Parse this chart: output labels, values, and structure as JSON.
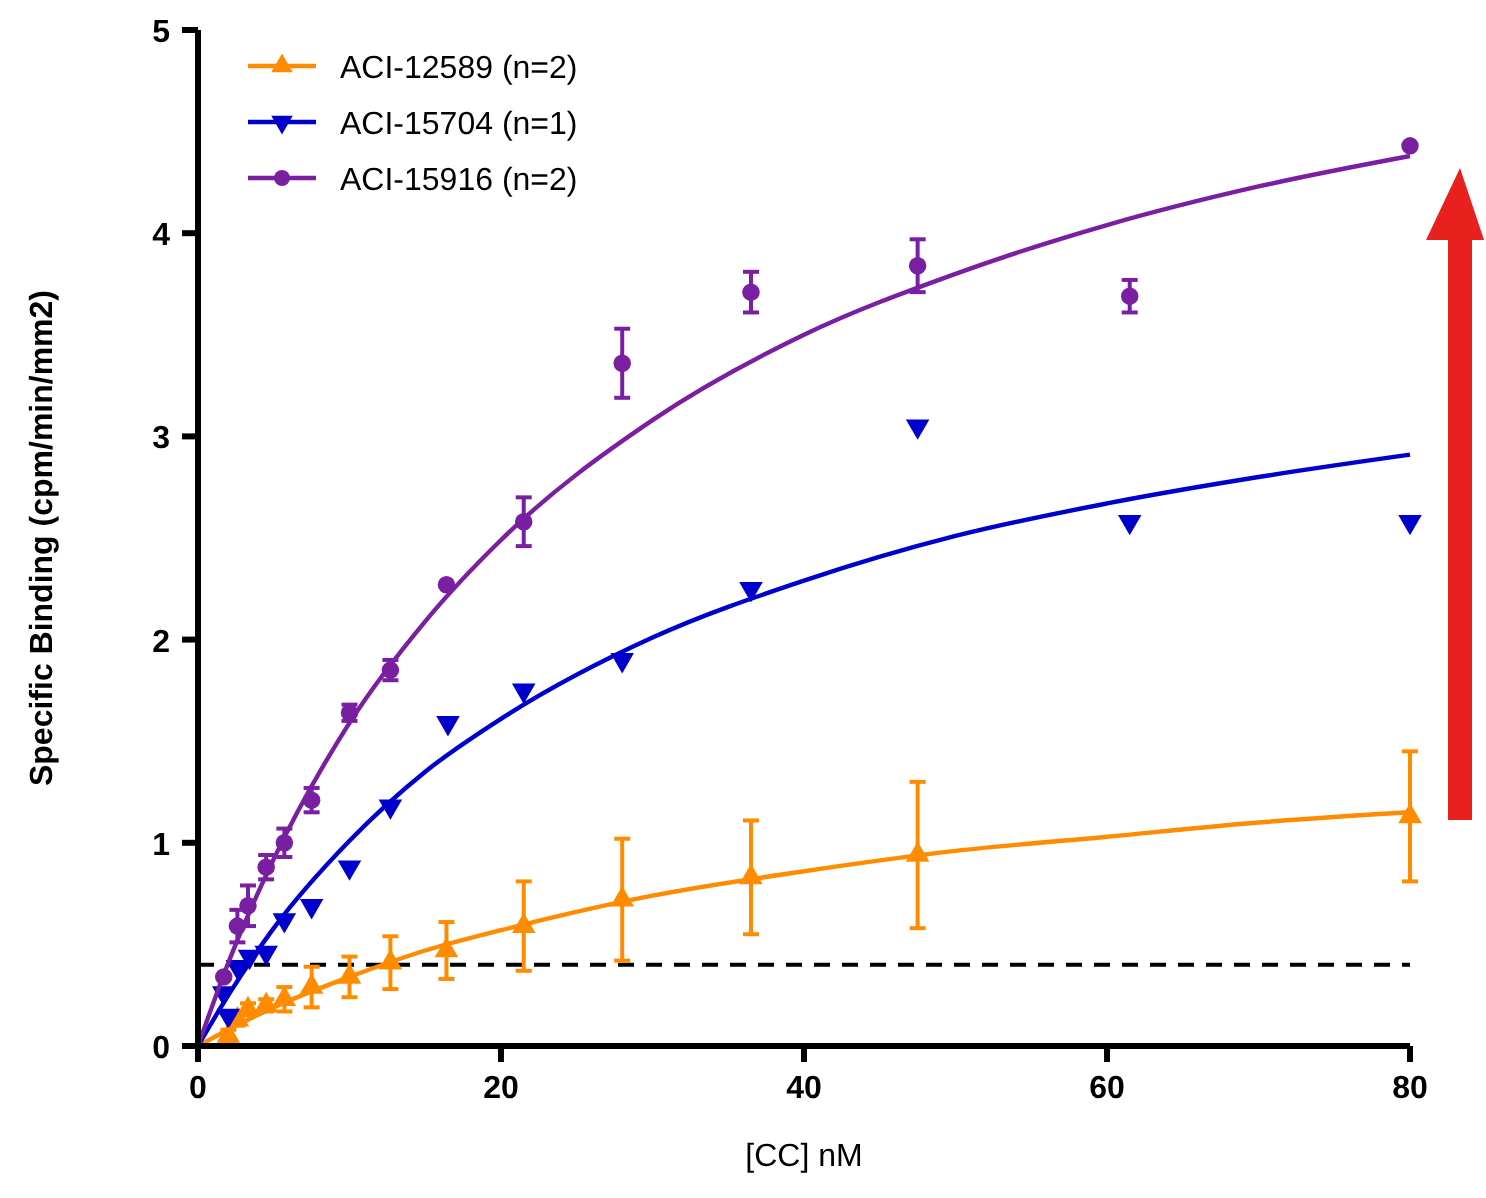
{
  "chart_data": {
    "type": "scatter",
    "xlabel": "[CC] nM",
    "ylabel": "Specific Binding (cpm/min/mm2)",
    "xlim": [
      0,
      80
    ],
    "ylim": [
      0,
      5
    ],
    "xticks": [
      0,
      20,
      40,
      60,
      80
    ],
    "yticks": [
      0,
      1,
      2,
      3,
      4,
      5
    ],
    "legend": "top left",
    "grid": false,
    "series": [
      {
        "name": "ACI-12589 (n=2)",
        "color": "#ff8c00",
        "marker": "triangle",
        "x": [
          2,
          2.6,
          3.3,
          4.5,
          5.7,
          7.5,
          10,
          12.7,
          16.4,
          21.5,
          28,
          36.5,
          47.5,
          80
        ],
        "values": [
          0.05,
          0.13,
          0.18,
          0.2,
          0.23,
          0.29,
          0.34,
          0.41,
          0.47,
          0.59,
          0.72,
          0.83,
          0.94,
          1.13
        ],
        "errors": [
          0.03,
          0.03,
          0.03,
          0.03,
          0.06,
          0.1,
          0.1,
          0.13,
          0.14,
          0.22,
          0.3,
          0.28,
          0.36,
          0.32
        ]
      },
      {
        "name": "ACI-15704 (n=1)",
        "color": "#0000cc",
        "marker": "triangle-down",
        "x": [
          1.7,
          2,
          2.6,
          3.4,
          4.5,
          5.7,
          7.5,
          10,
          12.7,
          16.5,
          21.5,
          28,
          36.5,
          47.5,
          61.5,
          80
        ],
        "values": [
          0.26,
          0.15,
          0.39,
          0.44,
          0.46,
          0.62,
          0.69,
          0.88,
          1.18,
          1.59,
          1.75,
          1.9,
          2.25,
          3.05,
          2.58,
          2.58
        ]
      },
      {
        "name": "ACI-15916 (n=2)",
        "color": "#7a1fa2",
        "marker": "circle",
        "x": [
          1.7,
          2.6,
          3.3,
          4.5,
          5.7,
          7.5,
          10,
          12.7,
          16.4,
          21.5,
          28,
          36.5,
          47.5,
          61.5,
          80
        ],
        "values": [
          0.34,
          0.59,
          0.69,
          0.88,
          1.0,
          1.21,
          1.64,
          1.85,
          2.27,
          2.58,
          3.36,
          3.71,
          3.84,
          3.69,
          4.43
        ],
        "errors": [
          null,
          0.08,
          0.1,
          0.06,
          0.07,
          0.06,
          0.04,
          0.05,
          null,
          0.12,
          0.17,
          0.1,
          0.13,
          0.08,
          null
        ]
      },
      {
        "type": "line",
        "color": "#ff8c00",
        "x": [
          0,
          2,
          5,
          10,
          15,
          20,
          30,
          40,
          50,
          60,
          70,
          80
        ],
        "values": [
          0,
          0.08,
          0.19,
          0.34,
          0.47,
          0.57,
          0.74,
          0.86,
          0.96,
          1.03,
          1.1,
          1.15
        ]
      },
      {
        "type": "line",
        "color": "#0000cc",
        "x": [
          0,
          2,
          5,
          10,
          15,
          20,
          30,
          40,
          50,
          60,
          70,
          80
        ],
        "values": [
          0,
          0.25,
          0.58,
          1.01,
          1.35,
          1.61,
          2.01,
          2.29,
          2.51,
          2.67,
          2.8,
          2.91
        ]
      },
      {
        "type": "line",
        "color": "#7a1fa2",
        "x": [
          0,
          2,
          5,
          10,
          15,
          20,
          30,
          40,
          50,
          60,
          70,
          80
        ],
        "values": [
          0,
          0.41,
          0.92,
          1.59,
          2.09,
          2.49,
          3.08,
          3.5,
          3.8,
          4.04,
          4.23,
          4.38
        ]
      }
    ],
    "ref_lines": [
      {
        "axis": "y",
        "value": 0.4,
        "color": "#000000",
        "line_style": "dashed"
      }
    ]
  }
}
